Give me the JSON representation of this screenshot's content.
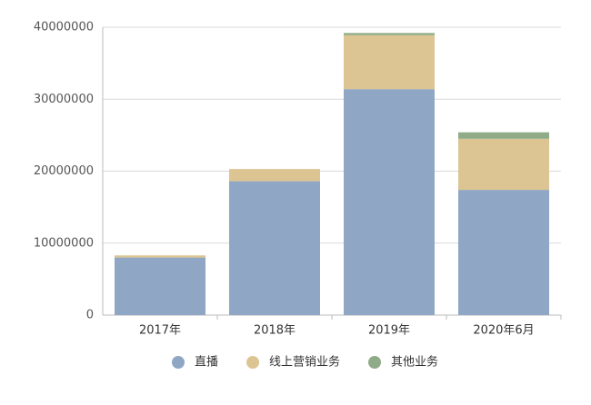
{
  "chart_data": {
    "type": "stacked_bar",
    "categories": [
      "2017年",
      "2018年",
      "2019年",
      "2020年6月"
    ],
    "series": [
      {
        "name": "直播",
        "color": "#8fa6c4",
        "values": [
          8000000,
          18600000,
          31400000,
          17400000
        ]
      },
      {
        "name": "线上营销业务",
        "color": "#dcc592",
        "values": [
          300000,
          1700000,
          7500000,
          7100000
        ]
      },
      {
        "name": "其他业务",
        "color": "#8fab88",
        "values": [
          0,
          0,
          300000,
          900000
        ]
      }
    ],
    "ylim": [
      0,
      40000000
    ],
    "yticks": [
      0,
      10000000,
      20000000,
      30000000,
      40000000
    ],
    "grid": true,
    "legend": "bottom"
  }
}
